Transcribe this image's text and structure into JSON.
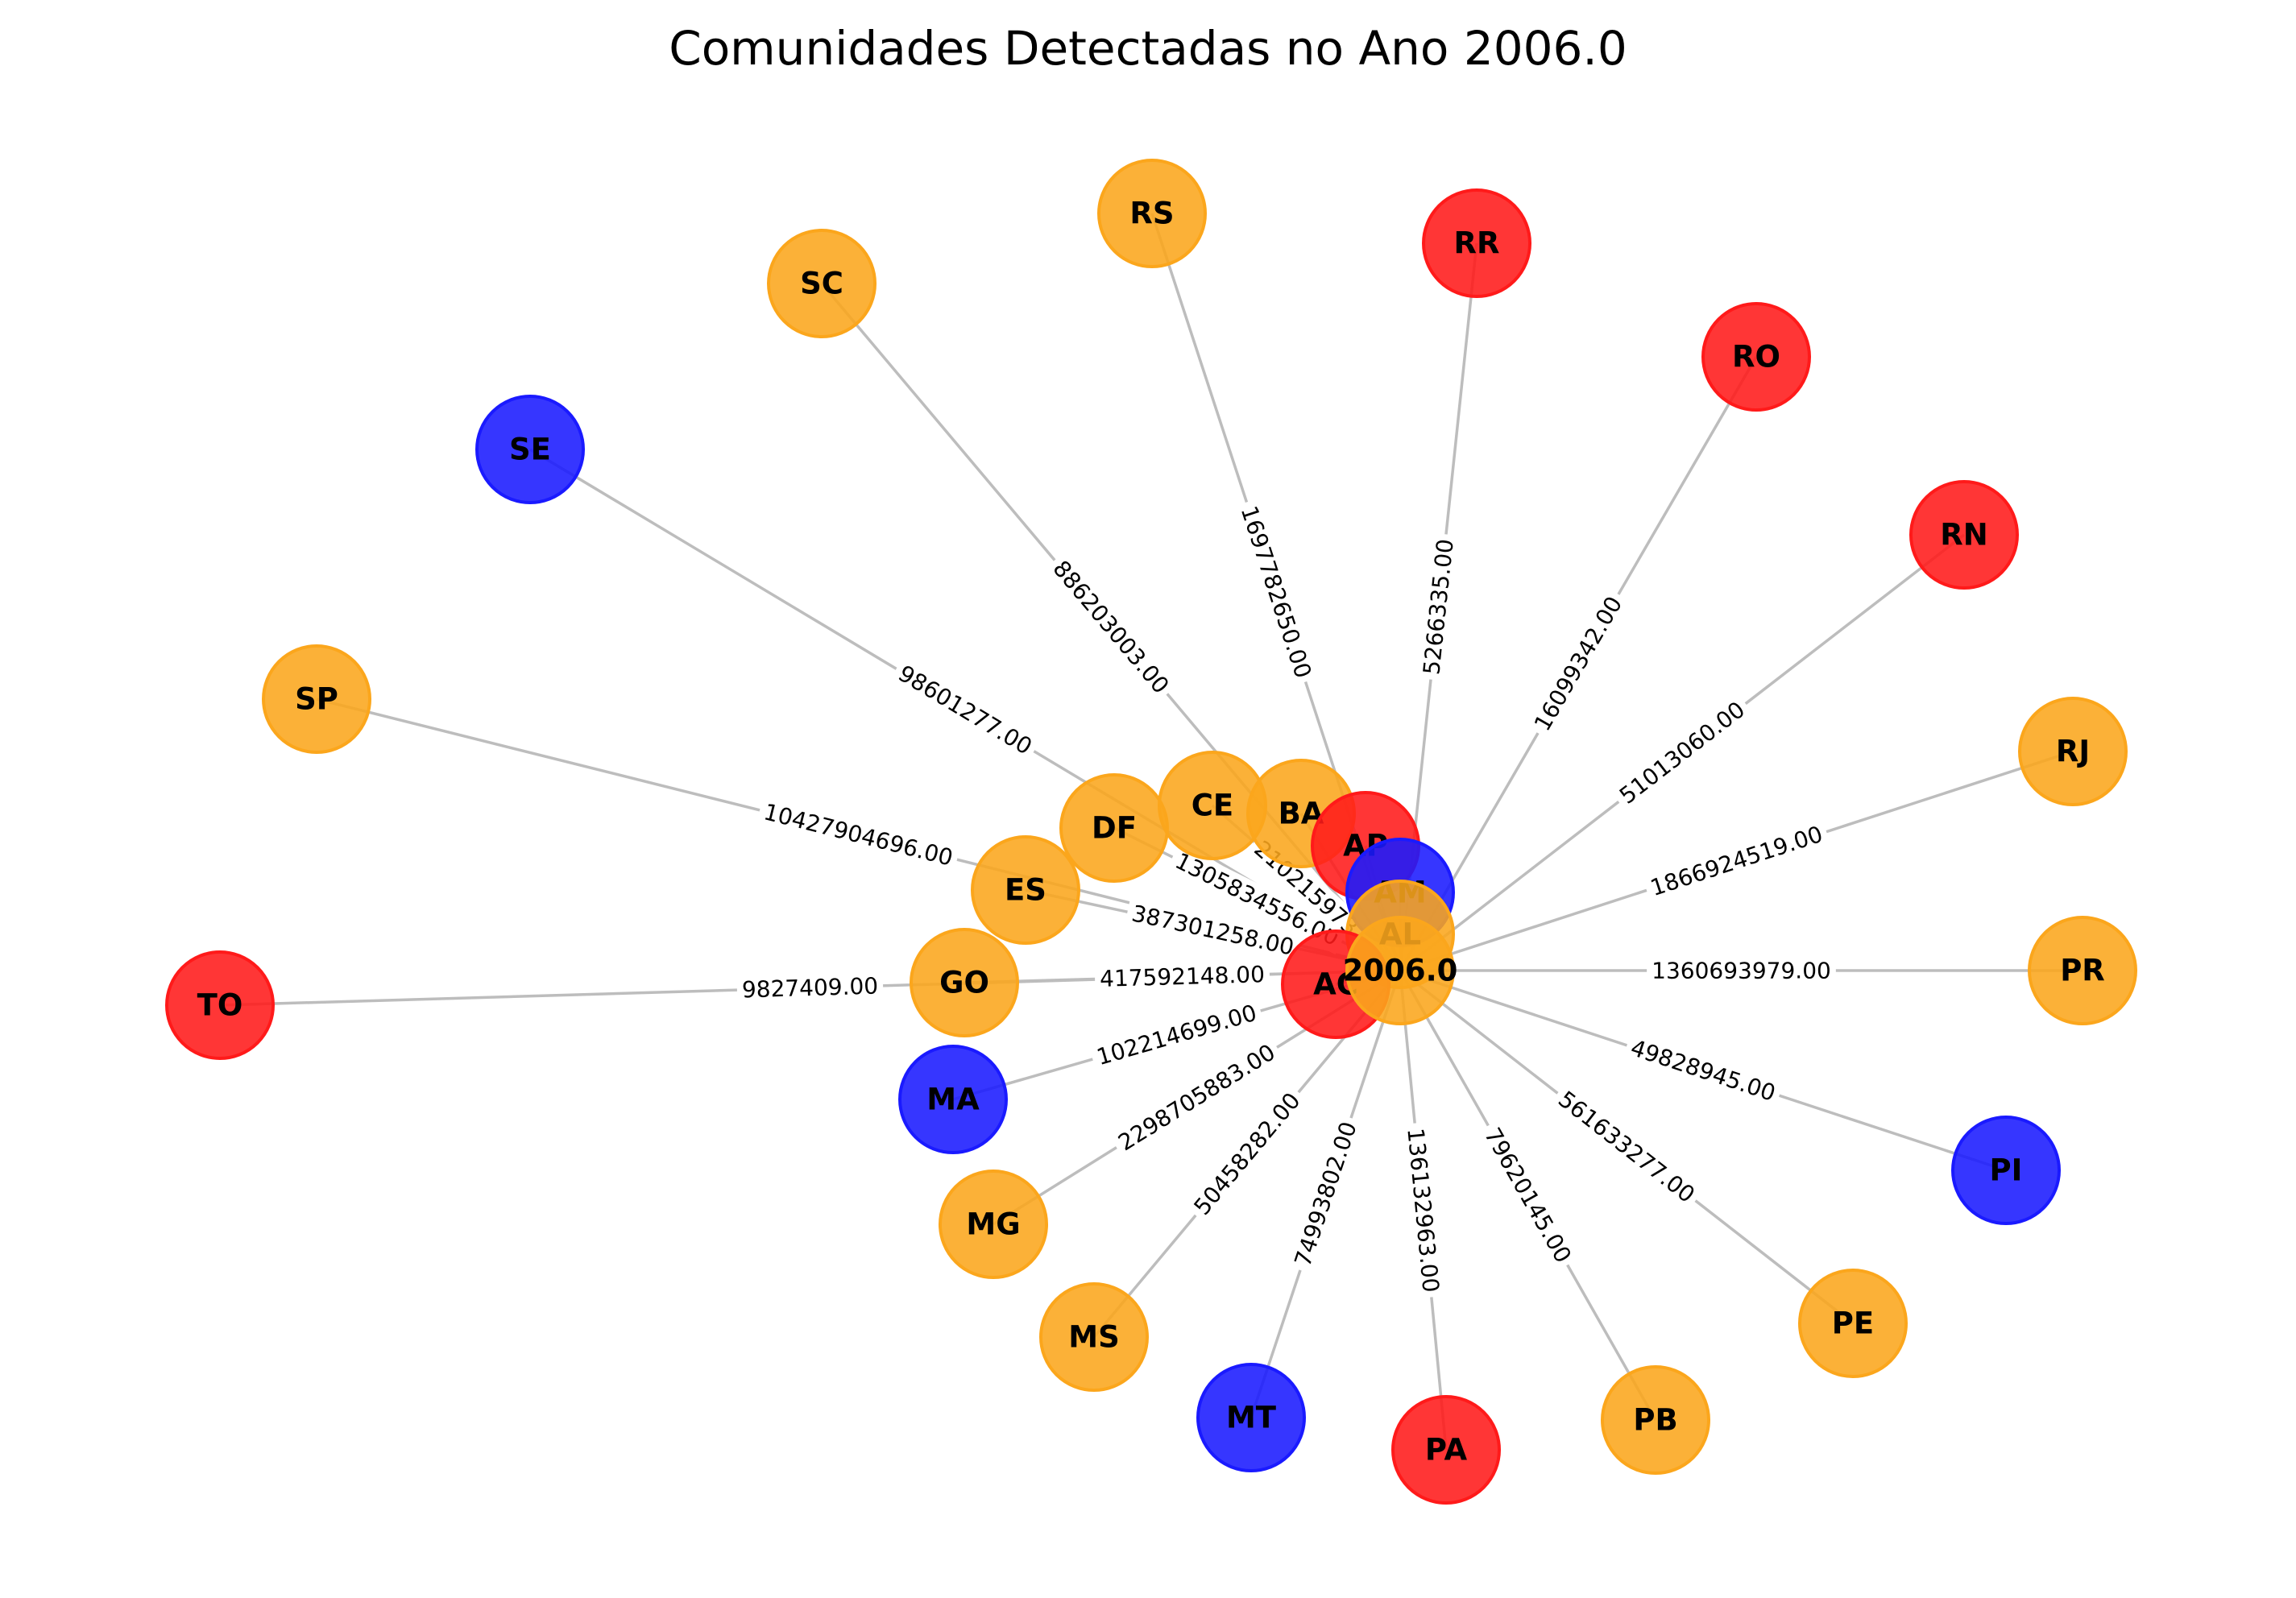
{
  "chart_data": {
    "type": "network",
    "title": "Comunidades Detectadas no Ano 2006.0",
    "center": "2006.0",
    "community_colors": {
      "orange": "#FBA61C",
      "red": "#FF1A1A",
      "blue": "#1A1AFF"
    },
    "nodes": [
      {
        "id": "2006.0",
        "community": "orange"
      },
      {
        "id": "RS",
        "community": "orange"
      },
      {
        "id": "RR",
        "community": "red"
      },
      {
        "id": "SC",
        "community": "orange"
      },
      {
        "id": "RO",
        "community": "red"
      },
      {
        "id": "SE",
        "community": "blue"
      },
      {
        "id": "RN",
        "community": "red"
      },
      {
        "id": "SP",
        "community": "orange"
      },
      {
        "id": "RJ",
        "community": "orange"
      },
      {
        "id": "DF",
        "community": "orange"
      },
      {
        "id": "CE",
        "community": "orange"
      },
      {
        "id": "BA",
        "community": "orange"
      },
      {
        "id": "AP",
        "community": "red"
      },
      {
        "id": "AM",
        "community": "blue"
      },
      {
        "id": "ES",
        "community": "orange"
      },
      {
        "id": "AL",
        "community": "orange"
      },
      {
        "id": "TO",
        "community": "red"
      },
      {
        "id": "GO",
        "community": "orange"
      },
      {
        "id": "AC",
        "community": "red"
      },
      {
        "id": "PR",
        "community": "orange"
      },
      {
        "id": "MA",
        "community": "blue"
      },
      {
        "id": "PI",
        "community": "blue"
      },
      {
        "id": "MG",
        "community": "orange"
      },
      {
        "id": "PE",
        "community": "orange"
      },
      {
        "id": "MS",
        "community": "orange"
      },
      {
        "id": "MT",
        "community": "blue"
      },
      {
        "id": "PA",
        "community": "red"
      },
      {
        "id": "PB",
        "community": "orange"
      }
    ],
    "edges": [
      {
        "target": "RS",
        "weight": "1697782650.00"
      },
      {
        "target": "RR",
        "weight": "5266335.00"
      },
      {
        "target": "SC",
        "weight": "886203003.00"
      },
      {
        "target": "RO",
        "weight": "16099342.00"
      },
      {
        "target": "SE",
        "weight": "98601277.00"
      },
      {
        "target": "RN",
        "weight": "51013060.00"
      },
      {
        "target": "SP",
        "weight": "10427904696.00"
      },
      {
        "target": "RJ",
        "weight": "1866924519.00"
      },
      {
        "target": "DF",
        "weight": "1305834556.00"
      },
      {
        "target": "CE",
        "weight": "210215973"
      },
      {
        "target": "ES",
        "weight": "387301258.00"
      },
      {
        "target": "TO",
        "weight": "9827409.00"
      },
      {
        "target": "GO",
        "weight": "417592148.00"
      },
      {
        "target": "PR",
        "weight": "1360693979.00"
      },
      {
        "target": "MA",
        "weight": "102214699.00"
      },
      {
        "target": "PI",
        "weight": "49828945.00"
      },
      {
        "target": "MG",
        "weight": "2298705883.00"
      },
      {
        "target": "PE",
        "weight": "561633277.00"
      },
      {
        "target": "MS",
        "weight": "50458282.00"
      },
      {
        "target": "MT",
        "weight": "74993802.00"
      },
      {
        "target": "PA",
        "weight": "136132963.00"
      },
      {
        "target": "PB",
        "weight": "79620145.00"
      },
      {
        "target": "BA",
        "weight": ""
      },
      {
        "target": "AP",
        "weight": ""
      },
      {
        "target": "AM",
        "weight": ""
      },
      {
        "target": "AL",
        "weight": ""
      },
      {
        "target": "AC",
        "weight": ""
      }
    ]
  }
}
